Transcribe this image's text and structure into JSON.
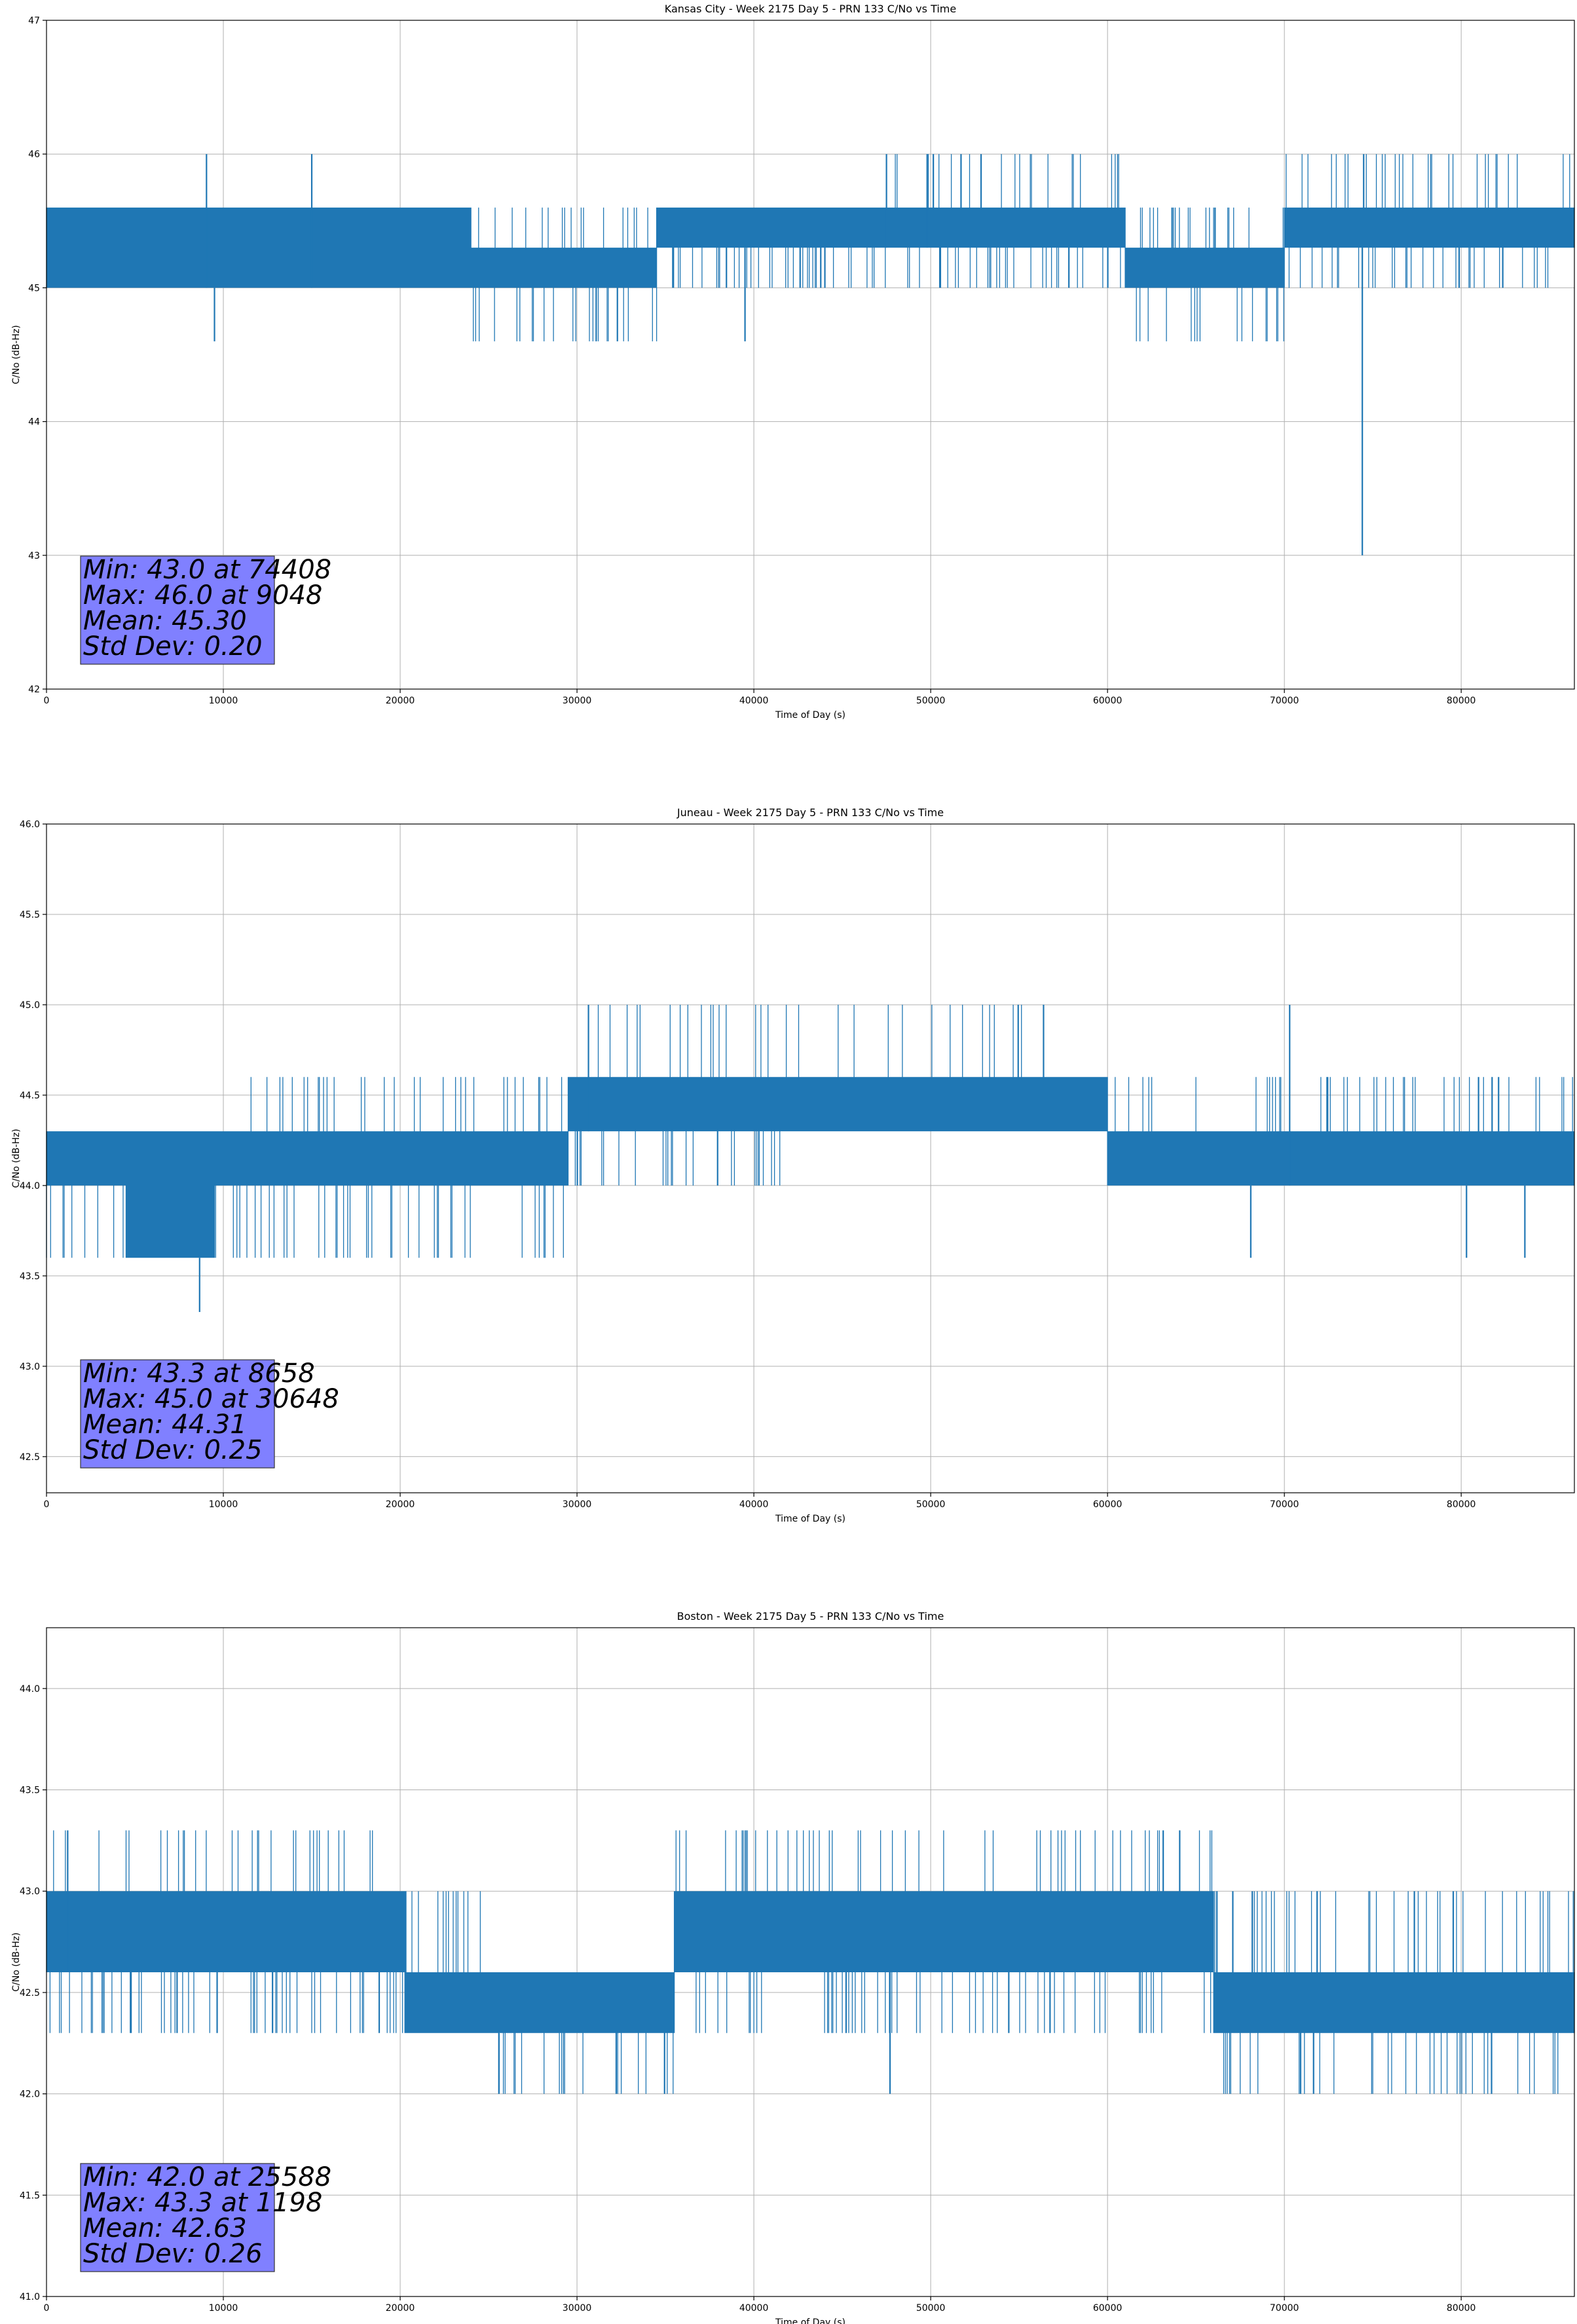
{
  "chart_data": [
    {
      "type": "line",
      "title": "Kansas City - Week 2175 Day 5 - PRN 133 C/No vs Time",
      "xlabel": "Time of Day (s)",
      "ylabel": "C/No (dB-Hz)",
      "xlim": [
        0,
        86400
      ],
      "ylim": [
        42,
        47
      ],
      "xticks": [
        0,
        10000,
        20000,
        30000,
        40000,
        50000,
        60000,
        70000,
        80000
      ],
      "yticks": [
        42,
        43,
        44,
        45,
        46,
        47
      ],
      "ytick_labels": [
        "42",
        "43",
        "44",
        "45",
        "46",
        "47"
      ],
      "grid": true,
      "series_color": "#1f77b4",
      "segments": [
        {
          "x": [
            0,
            9000
          ],
          "levels": [
            45.0,
            45.6
          ],
          "sparse_low": 45.0,
          "sparse_high": 45.6
        },
        {
          "x": [
            9000,
            24000
          ],
          "levels": [
            45.0,
            45.6
          ],
          "sparse_low": 45.0,
          "sparse_high": 45.6
        },
        {
          "x": [
            24000,
            34500
          ],
          "levels": [
            45.0,
            45.3
          ],
          "sparse_low": 44.6,
          "sparse_high": 45.6
        },
        {
          "x": [
            34500,
            48000
          ],
          "levels": [
            45.3,
            45.6
          ],
          "sparse_low": 45.0,
          "sparse_high": 45.6
        },
        {
          "x": [
            48000,
            61000
          ],
          "levels": [
            45.3,
            45.6
          ],
          "sparse_low": 45.0,
          "sparse_high": 46.0
        },
        {
          "x": [
            61000,
            70000
          ],
          "levels": [
            45.0,
            45.3
          ],
          "sparse_low": 44.6,
          "sparse_high": 45.6
        },
        {
          "x": [
            70000,
            86400
          ],
          "levels": [
            45.3,
            45.6
          ],
          "sparse_low": 45.0,
          "sparse_high": 46.0
        }
      ],
      "spikes": [
        {
          "x": 74408,
          "y": 43.0
        },
        {
          "x": 9048,
          "y": 46.0
        },
        {
          "x": 15000,
          "y": 46.0
        },
        {
          "x": 47500,
          "y": 46.0
        },
        {
          "x": 49800,
          "y": 46.0
        },
        {
          "x": 9500,
          "y": 44.6
        },
        {
          "x": 39500,
          "y": 44.6
        }
      ],
      "stats": [
        "Min: 43.0 at 74408",
        "Max: 46.0 at 9048",
        "Mean: 45.30",
        "Std Dev: 0.20"
      ]
    },
    {
      "type": "line",
      "title": "Juneau - Week 2175 Day 5 - PRN 133 C/No vs Time",
      "xlabel": "Time of Day (s)",
      "ylabel": "C/No (dB-Hz)",
      "xlim": [
        0,
        86400
      ],
      "ylim": [
        42.3,
        46.0
      ],
      "xticks": [
        0,
        10000,
        20000,
        30000,
        40000,
        50000,
        60000,
        70000,
        80000
      ],
      "yticks": [
        42.5,
        43.0,
        43.5,
        44.0,
        44.5,
        45.0,
        45.5,
        46.0
      ],
      "ytick_labels": [
        "42.5",
        "43.0",
        "43.5",
        "44.0",
        "44.5",
        "45.0",
        "45.5",
        "46.0"
      ],
      "grid": true,
      "series_color": "#1f77b4",
      "segments": [
        {
          "x": [
            0,
            4500
          ],
          "levels": [
            44.0,
            44.3
          ],
          "sparse_low": 43.6,
          "sparse_high": 44.3
        },
        {
          "x": [
            4500,
            9500
          ],
          "levels": [
            43.6,
            44.3
          ],
          "sparse_low": 43.6,
          "sparse_high": 44.3
        },
        {
          "x": [
            9500,
            29500
          ],
          "levels": [
            44.0,
            44.3
          ],
          "sparse_low": 43.6,
          "sparse_high": 44.6
        },
        {
          "x": [
            29500,
            41500
          ],
          "levels": [
            44.3,
            44.6
          ],
          "sparse_low": 44.0,
          "sparse_high": 45.0
        },
        {
          "x": [
            41500,
            56500
          ],
          "levels": [
            44.3,
            44.6
          ],
          "sparse_low": 44.3,
          "sparse_high": 45.0
        },
        {
          "x": [
            56500,
            60000
          ],
          "levels": [
            44.3,
            44.6
          ],
          "sparse_low": 44.3,
          "sparse_high": 44.6
        },
        {
          "x": [
            60000,
            86400
          ],
          "levels": [
            44.0,
            44.3
          ],
          "sparse_low": 44.0,
          "sparse_high": 44.6
        }
      ],
      "spikes": [
        {
          "x": 8658,
          "y": 43.3
        },
        {
          "x": 30648,
          "y": 45.0
        },
        {
          "x": 70300,
          "y": 45.0
        },
        {
          "x": 68100,
          "y": 43.6
        },
        {
          "x": 80300,
          "y": 43.6
        },
        {
          "x": 83600,
          "y": 43.6
        }
      ],
      "stats": [
        "Min: 43.3 at 8658",
        "Max: 45.0 at 30648",
        "Mean: 44.31",
        "Std Dev: 0.25"
      ]
    },
    {
      "type": "line",
      "title": "Boston - Week 2175 Day 5 - PRN 133 C/No vs Time",
      "xlabel": "Time of Day (s)",
      "ylabel": "C/No (dB-Hz)",
      "xlim": [
        0,
        86400
      ],
      "ylim": [
        41.0,
        44.3
      ],
      "xticks": [
        0,
        10000,
        20000,
        30000,
        40000,
        50000,
        60000,
        70000,
        80000
      ],
      "yticks": [
        41.0,
        41.5,
        42.0,
        42.5,
        43.0,
        43.5,
        44.0
      ],
      "ytick_labels": [
        "41.0",
        "41.5",
        "42.0",
        "42.5",
        "43.0",
        "43.5",
        "44.0"
      ],
      "grid": true,
      "series_color": "#1f77b4",
      "segments": [
        {
          "x": [
            0,
            20300
          ],
          "levels": [
            42.6,
            43.0
          ],
          "sparse_low": 42.3,
          "sparse_high": 43.3
        },
        {
          "x": [
            20300,
            25500
          ],
          "levels": [
            42.3,
            42.6
          ],
          "sparse_low": 42.3,
          "sparse_high": 43.0
        },
        {
          "x": [
            25500,
            35500
          ],
          "levels": [
            42.3,
            42.6
          ],
          "sparse_low": 42.0,
          "sparse_high": 42.6
        },
        {
          "x": [
            35500,
            66000
          ],
          "levels": [
            42.6,
            43.0
          ],
          "sparse_low": 42.3,
          "sparse_high": 43.3
        },
        {
          "x": [
            66000,
            86400
          ],
          "levels": [
            42.3,
            42.6
          ],
          "sparse_low": 42.0,
          "sparse_high": 43.0
        }
      ],
      "spikes": [
        {
          "x": 1198,
          "y": 43.3
        },
        {
          "x": 25588,
          "y": 42.0
        },
        {
          "x": 47700,
          "y": 42.0
        }
      ],
      "stats": [
        "Min: 42.0 at 25588",
        "Max: 43.3 at 1198",
        "Mean: 42.63",
        "Std Dev: 0.26"
      ]
    }
  ]
}
